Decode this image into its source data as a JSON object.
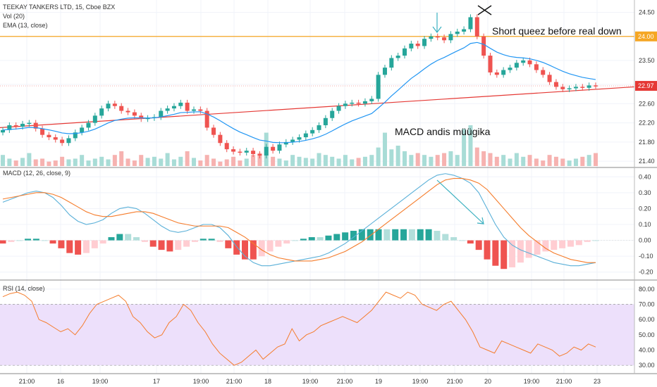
{
  "header": {
    "title": "TEEKAY TANKERS LTD, 15, Cboe BZX",
    "vol_label": "Vol (20)",
    "ema_label": "EMA (13, close)"
  },
  "macd_header": "MACD (12, 26, close, 9)",
  "rsi_header": "RSI (14, close)",
  "annotations": {
    "short_squeeze": "Short queez before real down",
    "macd_note": "MACD andis müügika"
  },
  "colors": {
    "up": "#26a69a",
    "down": "#ef5350",
    "ema": "#2196f3",
    "macd": "#5ab0d8",
    "signal": "#f57c2b",
    "trendline": "#e53935",
    "horizontal": "#f5a623",
    "rsi": "#f57c2b",
    "rsi_band": "#ede0fb",
    "annotation": "#3ab0c0"
  },
  "chart_data": [
    {
      "type": "candlestick",
      "name": "price",
      "ylim": [
        21.3,
        24.7
      ],
      "y_ticks": [
        "24.50",
        "24.00",
        "23.50",
        "23.00",
        "22.60",
        "22.20",
        "21.80",
        "21.40"
      ],
      "x_ticks": [
        "21:00",
        "16",
        "19:00",
        "17",
        "19:00",
        "21:00",
        "18",
        "19:00",
        "21:00",
        "19",
        "19:00",
        "21:00",
        "20",
        "19:00",
        "21:00",
        "23"
      ],
      "price_labels": [
        {
          "text": "24.00",
          "value": 24.0
        },
        {
          "text": "22.97",
          "value": 22.97
        }
      ],
      "horizontal_line": 24.0,
      "current_price_line": 22.97,
      "trendline": {
        "start": 22.1,
        "end": 22.95
      },
      "closes": [
        22.05,
        22.15,
        22.12,
        22.18,
        22.2,
        22.08,
        21.95,
        21.9,
        21.85,
        21.78,
        21.88,
        22.0,
        22.1,
        22.2,
        22.35,
        22.5,
        22.6,
        22.55,
        22.45,
        22.42,
        22.35,
        22.28,
        22.3,
        22.32,
        22.45,
        22.5,
        22.55,
        22.62,
        22.45,
        22.48,
        22.45,
        22.1,
        21.95,
        21.78,
        21.65,
        21.6,
        21.58,
        21.62,
        21.55,
        21.52,
        21.7,
        21.62,
        21.75,
        21.8,
        21.85,
        21.9,
        21.98,
        22.05,
        22.15,
        22.3,
        22.45,
        22.55,
        22.6,
        22.62,
        22.6,
        22.65,
        22.7,
        23.2,
        23.35,
        23.55,
        23.6,
        23.75,
        23.85,
        23.8,
        23.95,
        24.0,
        23.98,
        23.92,
        24.05,
        24.1,
        24.15,
        24.4,
        24.0,
        23.6,
        23.25,
        23.2,
        23.3,
        23.35,
        23.45,
        23.5,
        23.42,
        23.3,
        23.2,
        23.05,
        22.95,
        22.9,
        22.92,
        22.95,
        22.93,
        22.98,
        22.97
      ],
      "volume": [
        0.3,
        0.2,
        0.15,
        0.22,
        0.35,
        0.18,
        0.2,
        0.12,
        0.15,
        0.25,
        0.18,
        0.2,
        0.3,
        0.15,
        0.2,
        0.25,
        0.18,
        0.3,
        0.4,
        0.2,
        0.15,
        0.3,
        0.22,
        0.25,
        0.2,
        0.35,
        0.18,
        0.25,
        0.4,
        0.22,
        0.15,
        0.3,
        0.2,
        0.12,
        0.18,
        0.25,
        0.15,
        0.2,
        0.3,
        0.35,
        0.9,
        0.25,
        0.2,
        0.15,
        0.3,
        0.25,
        0.22,
        0.2,
        0.35,
        0.3,
        0.25,
        0.2,
        0.3,
        0.18,
        0.22,
        0.25,
        0.3,
        0.5,
        0.9,
        0.45,
        0.55,
        0.4,
        0.3,
        0.35,
        0.3,
        0.25,
        0.3,
        0.35,
        0.4,
        0.3,
        1.0,
        1.1,
        0.5,
        0.4,
        0.35,
        0.25,
        0.3,
        0.2,
        0.35,
        0.25,
        0.3,
        0.2,
        0.15,
        0.3,
        0.25,
        0.2,
        0.15,
        0.2,
        0.25,
        0.3,
        0.35
      ]
    },
    {
      "type": "line",
      "name": "macd",
      "ylim": [
        -0.25,
        0.45
      ],
      "y_ticks": [
        "0.40",
        "0.30",
        "0.20",
        "0.10",
        "0.00",
        "-0.10",
        "-0.20"
      ],
      "macd": [
        0.24,
        0.26,
        0.28,
        0.3,
        0.31,
        0.3,
        0.27,
        0.22,
        0.16,
        0.12,
        0.1,
        0.11,
        0.13,
        0.17,
        0.2,
        0.21,
        0.2,
        0.17,
        0.13,
        0.09,
        0.06,
        0.05,
        0.06,
        0.08,
        0.1,
        0.1,
        0.08,
        0.03,
        -0.04,
        -0.1,
        -0.14,
        -0.16,
        -0.16,
        -0.15,
        -0.14,
        -0.13,
        -0.12,
        -0.11,
        -0.1,
        -0.08,
        -0.05,
        -0.02,
        0.02,
        0.06,
        0.1,
        0.14,
        0.18,
        0.22,
        0.26,
        0.3,
        0.34,
        0.38,
        0.41,
        0.42,
        0.41,
        0.39,
        0.36,
        0.3,
        0.2,
        0.1,
        0.02,
        -0.03,
        -0.06,
        -0.08,
        -0.1,
        -0.12,
        -0.14,
        -0.15,
        -0.16,
        -0.16,
        -0.15,
        -0.14
      ],
      "signal": [
        0.26,
        0.27,
        0.28,
        0.29,
        0.3,
        0.3,
        0.29,
        0.27,
        0.24,
        0.21,
        0.18,
        0.16,
        0.15,
        0.15,
        0.16,
        0.17,
        0.18,
        0.18,
        0.17,
        0.15,
        0.13,
        0.11,
        0.1,
        0.09,
        0.09,
        0.09,
        0.09,
        0.08,
        0.05,
        0.02,
        -0.02,
        -0.06,
        -0.09,
        -0.11,
        -0.12,
        -0.13,
        -0.13,
        -0.13,
        -0.12,
        -0.11,
        -0.09,
        -0.07,
        -0.04,
        -0.01,
        0.03,
        0.07,
        0.11,
        0.15,
        0.19,
        0.23,
        0.27,
        0.31,
        0.35,
        0.38,
        0.39,
        0.39,
        0.38,
        0.36,
        0.32,
        0.26,
        0.2,
        0.14,
        0.08,
        0.03,
        -0.01,
        -0.05,
        -0.08,
        -0.1,
        -0.12,
        -0.13,
        -0.14,
        -0.14
      ]
    },
    {
      "type": "line",
      "name": "rsi",
      "ylim": [
        25,
        85
      ],
      "y_ticks": [
        "80.00",
        "70.00",
        "60.00",
        "50.00",
        "40.00",
        "30.00"
      ],
      "band": [
        30,
        70
      ],
      "values": [
        75,
        77,
        78,
        76,
        72,
        60,
        58,
        55,
        52,
        54,
        50,
        56,
        64,
        70,
        72,
        74,
        76,
        72,
        62,
        58,
        52,
        48,
        50,
        58,
        62,
        70,
        66,
        58,
        52,
        44,
        38,
        34,
        30,
        32,
        36,
        40,
        34,
        38,
        42,
        44,
        54,
        46,
        50,
        52,
        56,
        58,
        60,
        62,
        60,
        58,
        62,
        66,
        72,
        78,
        76,
        74,
        78,
        76,
        70,
        68,
        66,
        70,
        72,
        66,
        60,
        52,
        42,
        40,
        38,
        46,
        44,
        42,
        40,
        38,
        44,
        42,
        40,
        36,
        38,
        42,
        40,
        44,
        42
      ]
    }
  ]
}
